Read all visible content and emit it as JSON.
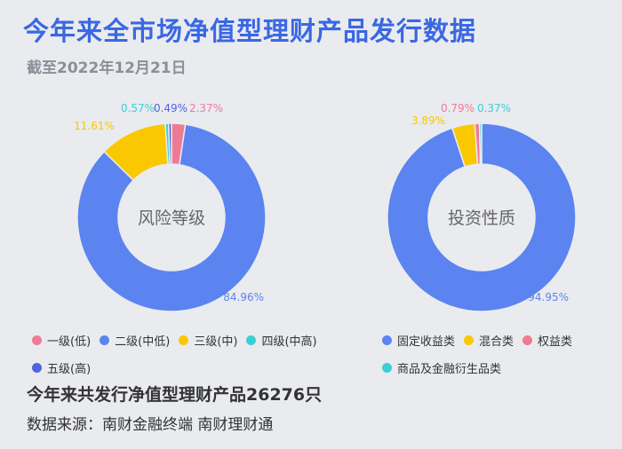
{
  "header": {
    "title": "今年来全市场净值型理财产品发行数据",
    "subtitle": "截至2022年12月21日"
  },
  "chart_data": [
    {
      "type": "pie",
      "center_label": "风险等级",
      "categories": [
        "一级(低)",
        "二级(中低)",
        "三级(中)",
        "四级(中高)",
        "五级(高)"
      ],
      "values": [
        2.37,
        84.96,
        11.61,
        0.57,
        0.49
      ],
      "labels": [
        "2.37%",
        "84.96%",
        "11.61%",
        "0.57%",
        "0.49%"
      ],
      "colors": [
        "#ef7a94",
        "#5b84f0",
        "#fac800",
        "#3ccfd6",
        "#5164e0"
      ]
    },
    {
      "type": "pie",
      "center_label": "投资性质",
      "categories": [
        "固定收益类",
        "混合类",
        "权益类",
        "商品及金融衍生品类"
      ],
      "values": [
        94.95,
        3.89,
        0.79,
        0.37
      ],
      "labels": [
        "94.95%",
        "3.89%",
        "0.79%",
        "0.37%"
      ],
      "colors": [
        "#5b84f0",
        "#fac800",
        "#ef7a94",
        "#3ccfd6"
      ]
    }
  ],
  "legends": [
    [
      {
        "label": "一级(低)",
        "color": "#ef7a94"
      },
      {
        "label": "二级(中低)",
        "color": "#5b84f0"
      },
      {
        "label": "三级(中)",
        "color": "#fac800"
      },
      {
        "label": "四级(中高)",
        "color": "#3ccfd6"
      },
      {
        "label": "五级(高)",
        "color": "#5164e0"
      }
    ],
    [
      {
        "label": "固定收益类",
        "color": "#5b84f0"
      },
      {
        "label": "混合类",
        "color": "#fac800"
      },
      {
        "label": "权益类",
        "color": "#ef7a94"
      },
      {
        "label": "商品及金融衍生品类",
        "color": "#3ccfd6"
      }
    ]
  ],
  "footer": {
    "summary": "今年来共发行净值型理财产品26276只",
    "source": "数据来源：南财金融终端 南财理财通"
  }
}
